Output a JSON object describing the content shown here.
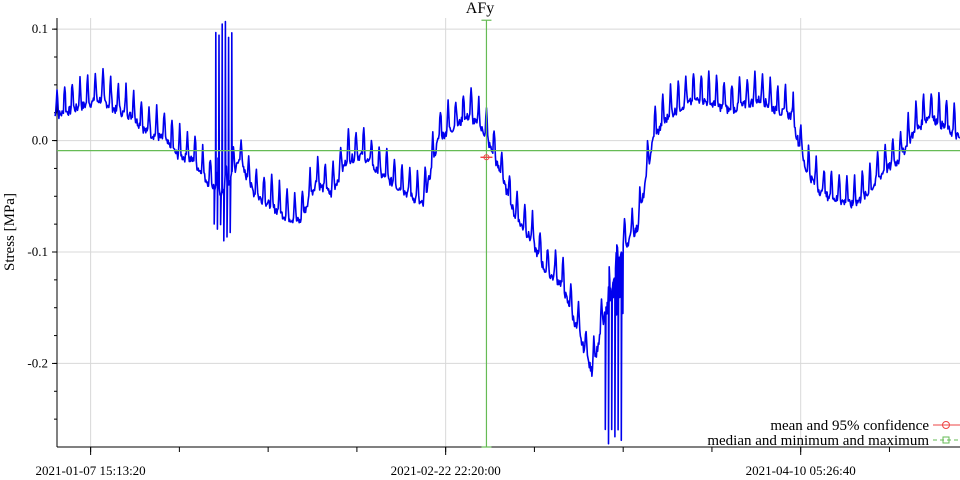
{
  "chart_data": {
    "type": "line",
    "title": "AFy",
    "ylabel": "Stress [MPa]",
    "xlabel": "",
    "x_ticks": [
      "2021-01-07 15:13:20",
      "2021-02-22 22:20:00",
      "2021-04-10 05:26:40"
    ],
    "y_ticks": [
      "0.1",
      "0.0",
      "-0.1",
      "-0.2"
    ],
    "xlim": [
      "2021-01-03 06:00:00",
      "2021-05-01 00:00:00"
    ],
    "ylim": [
      -0.275,
      0.11
    ],
    "grid": true,
    "legend": {
      "placement": "bottom-right",
      "entries": [
        "mean and 95% confidence",
        "median and minimum and maximum"
      ]
    },
    "colors": {
      "series": "#0000ee",
      "median": "#66bb55",
      "mean": "#ee4444"
    },
    "series": [
      {
        "values_x": [
          "2021-01-03",
          "2021-01-05",
          "2021-01-07",
          "2021-01-09",
          "2021-01-11",
          "2021-01-13",
          "2021-01-15",
          "2021-01-17",
          "2021-01-19",
          "2021-01-21",
          "2021-01-23",
          "2021-01-25",
          "2021-01-27",
          "2021-01-29",
          "2021-01-31",
          "2021-02-02",
          "2021-02-04",
          "2021-02-06",
          "2021-02-08",
          "2021-02-10",
          "2021-02-12",
          "2021-02-14",
          "2021-02-16",
          "2021-02-18",
          "2021-02-20",
          "2021-02-22",
          "2021-02-24",
          "2021-02-26",
          "2021-02-28",
          "2021-03-02",
          "2021-03-04",
          "2021-03-06",
          "2021-03-08",
          "2021-03-10",
          "2021-03-12",
          "2021-03-14",
          "2021-03-16",
          "2021-03-18",
          "2021-03-20",
          "2021-03-22",
          "2021-03-24",
          "2021-03-26",
          "2021-03-28",
          "2021-03-30",
          "2021-04-01",
          "2021-04-03",
          "2021-04-05",
          "2021-04-07",
          "2021-04-09",
          "2021-04-11",
          "2021-04-13",
          "2021-04-15",
          "2021-04-17",
          "2021-04-19",
          "2021-04-21",
          "2021-04-23",
          "2021-04-25",
          "2021-04-27",
          "2021-04-29",
          "2021-05-01"
        ],
        "values": [
          0.03,
          0.035,
          0.04,
          0.045,
          0.035,
          0.03,
          0.015,
          0.01,
          -0.005,
          -0.01,
          -0.03,
          -0.04,
          -0.01,
          -0.04,
          -0.05,
          -0.06,
          -0.065,
          -0.03,
          -0.04,
          -0.01,
          -0.005,
          -0.02,
          -0.03,
          -0.04,
          -0.05,
          0.01,
          0.02,
          0.03,
          0.015,
          -0.02,
          -0.06,
          -0.08,
          -0.11,
          -0.12,
          -0.16,
          -0.2,
          -0.14,
          -0.09,
          -0.07,
          0.01,
          0.03,
          0.04,
          0.045,
          0.04,
          0.035,
          0.04,
          0.045,
          0.035,
          0.03,
          -0.02,
          -0.04,
          -0.045,
          -0.05,
          -0.04,
          -0.02,
          -0.01,
          0.015,
          0.03,
          0.02,
          0.01
        ],
        "spikes": [
          {
            "x": "2021-01-25",
            "high": 0.11,
            "low": -0.09
          },
          {
            "x": "2021-03-17",
            "high": -0.14,
            "low": -0.275
          }
        ]
      }
    ],
    "summary": {
      "median": -0.009,
      "minimum": -0.275,
      "maximum": 0.108,
      "mean": -0.015,
      "stats_x": "2021-02-28 06:00:00"
    }
  }
}
